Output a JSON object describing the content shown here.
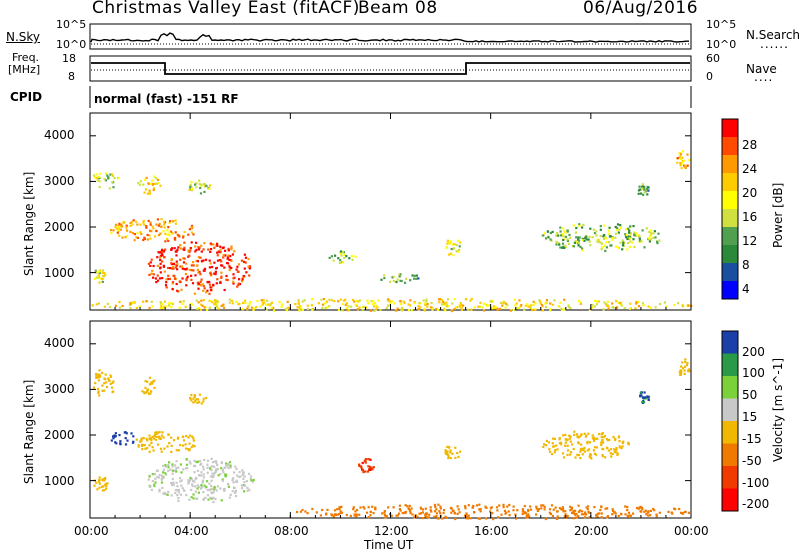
{
  "header": {
    "title": "Christmas Valley East (fitACF)",
    "beam": "Beam 08",
    "date": "06/Aug/2016"
  },
  "top_panels": {
    "nsky_label": "N.Sky",
    "nsearch_label": "N.Search",
    "noise_ticks_left": [
      "10^5",
      "10^0"
    ],
    "noise_ticks_right": [
      "10^5",
      "10^0"
    ],
    "freq_label_1": "Freq.",
    "freq_label_2": "[MHz]",
    "freq_ticks": [
      "18",
      "8"
    ],
    "nave_label": "Nave",
    "nave_ticks": [
      "60",
      "0"
    ],
    "cpid_label": "CPID",
    "cpid_text": "normal (fast) -151 RF"
  },
  "axes": {
    "xlabel": "Time UT",
    "x_ticks": [
      "00:00",
      "04:00",
      "08:00",
      "12:00",
      "16:00",
      "20:00",
      "00:00"
    ],
    "ylabel": "Slant Range [km]",
    "y_ticks": [
      "4000",
      "3000",
      "2000",
      "1000"
    ]
  },
  "colorbars": {
    "power": {
      "label": "Power [dB]",
      "ticks": [
        "28",
        "24",
        "20",
        "16",
        "12",
        "8",
        "4"
      ],
      "colors": [
        "#ff0000",
        "#ff4a00",
        "#ff9900",
        "#ffcc00",
        "#ffff00",
        "#d0e040",
        "#50a050",
        "#2b8a3a",
        "#1a4fa0",
        "#0000ff"
      ]
    },
    "velocity": {
      "label": "Velocity [m s^-1]",
      "ticks": [
        "200",
        "100",
        "50",
        "15",
        "-15",
        "-50",
        "-100",
        "-200"
      ],
      "colors": [
        "#1b3fa8",
        "#2a9a48",
        "#7ad13a",
        "#c8c8c8",
        "#f0b800",
        "#f07a00",
        "#f03a00",
        "#ff0000"
      ]
    }
  },
  "chart_data": [
    {
      "type": "heatmap",
      "title": "Power",
      "xlabel": "Time UT",
      "ylabel": "Slant Range [km]",
      "xlim_hours": [
        0,
        24
      ],
      "ylim_km": [
        180,
        4500
      ],
      "value_label": "Power [dB]",
      "value_range": [
        0,
        30
      ],
      "regions": [
        {
          "t": [
            0.1,
            1.1
          ],
          "r": [
            2850,
            3300
          ],
          "value": 14
        },
        {
          "t": [
            1.8,
            2.8
          ],
          "r": [
            2750,
            3150
          ],
          "value": 18
        },
        {
          "t": [
            3.8,
            4.8
          ],
          "r": [
            2750,
            3050
          ],
          "value": 14
        },
        {
          "t": [
            0.8,
            4.2
          ],
          "r": [
            1700,
            2200
          ],
          "value": 22
        },
        {
          "t": [
            0.1,
            0.6
          ],
          "r": [
            800,
            1100
          ],
          "value": 16
        },
        {
          "t": [
            2.3,
            6.4
          ],
          "r": [
            550,
            1700
          ],
          "value": 27
        },
        {
          "t": [
            9.3,
            10.6
          ],
          "r": [
            1200,
            1500
          ],
          "value": 12
        },
        {
          "t": [
            11.5,
            13.2
          ],
          "r": [
            800,
            1000
          ],
          "value": 10
        },
        {
          "t": [
            14.1,
            14.8
          ],
          "r": [
            1400,
            1800
          ],
          "value": 16
        },
        {
          "t": [
            18.0,
            22.8
          ],
          "r": [
            1500,
            2100
          ],
          "value": 12
        },
        {
          "t": [
            21.8,
            22.3
          ],
          "r": [
            2700,
            3000
          ],
          "value": 10
        },
        {
          "t": [
            23.4,
            23.9
          ],
          "r": [
            3300,
            3700
          ],
          "value": 20
        },
        {
          "t": [
            0.0,
            24.0
          ],
          "r": [
            180,
            450
          ],
          "value": 18
        }
      ]
    },
    {
      "type": "heatmap",
      "title": "Velocity",
      "xlabel": "Time UT",
      "ylabel": "Slant Range [km]",
      "xlim_hours": [
        0,
        24
      ],
      "ylim_km": [
        180,
        4500
      ],
      "value_label": "Velocity [m s^-1]",
      "value_range": [
        -200,
        200
      ],
      "regions": [
        {
          "t": [
            0.1,
            1.0
          ],
          "r": [
            2850,
            3500
          ],
          "value": 0
        },
        {
          "t": [
            2.0,
            2.6
          ],
          "r": [
            2900,
            3300
          ],
          "value": 0
        },
        {
          "t": [
            3.9,
            4.6
          ],
          "r": [
            2700,
            3000
          ],
          "value": 0
        },
        {
          "t": [
            0.8,
            1.8
          ],
          "r": [
            1800,
            2100
          ],
          "value": 220
        },
        {
          "t": [
            1.8,
            4.2
          ],
          "r": [
            1600,
            2100
          ],
          "value": 0
        },
        {
          "t": [
            2.2,
            6.5
          ],
          "r": [
            550,
            1500
          ],
          "value": 40
        },
        {
          "t": [
            0.1,
            0.7
          ],
          "r": [
            800,
            1100
          ],
          "value": 0
        },
        {
          "t": [
            10.7,
            11.3
          ],
          "r": [
            1200,
            1500
          ],
          "value": -90
        },
        {
          "t": [
            14.1,
            14.8
          ],
          "r": [
            1500,
            1800
          ],
          "value": 0
        },
        {
          "t": [
            18.0,
            21.5
          ],
          "r": [
            1500,
            2100
          ],
          "value": 0
        },
        {
          "t": [
            21.9,
            22.3
          ],
          "r": [
            2700,
            3000
          ],
          "value": 200
        },
        {
          "t": [
            23.4,
            23.9
          ],
          "r": [
            3300,
            3700
          ],
          "value": 0
        },
        {
          "t": [
            8.0,
            24.0
          ],
          "r": [
            180,
            500
          ],
          "value": -30
        }
      ]
    }
  ]
}
